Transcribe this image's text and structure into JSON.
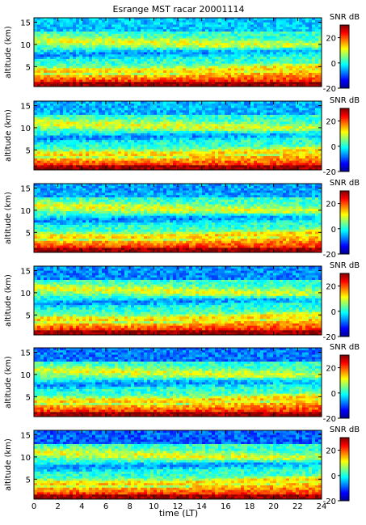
{
  "title": "Esrange MST racar 20001114",
  "colormap": [
    "#00008f",
    "#0000ff",
    "#0080ff",
    "#00ffff",
    "#80ff80",
    "#ffff00",
    "#ff8000",
    "#ff0000",
    "#800000"
  ],
  "chart_data": {
    "type": "heatmap",
    "title": "Esrange MST racar 20001114",
    "xlabel": "time (LT)",
    "ylabel": "altitude (km)",
    "xlim": [
      0,
      24
    ],
    "ylim": [
      0.5,
      16
    ],
    "xticks": [
      "0",
      "2",
      "4",
      "6",
      "8",
      "10",
      "12",
      "14",
      "16",
      "18",
      "20",
      "22",
      "24"
    ],
    "yticks": [
      "5",
      "10",
      "15"
    ],
    "colorbar": {
      "label": "SNR dB",
      "range": [
        -20,
        30
      ],
      "ticks": [
        "20",
        "0",
        "-20"
      ]
    },
    "panels": [
      {
        "ylabel": "altitude (km)"
      },
      {
        "ylabel": "altitude (km)"
      },
      {
        "ylabel": "altitude (km)"
      },
      {
        "ylabel": "altitude (km)"
      },
      {
        "ylabel": "altitude (km)"
      },
      {
        "ylabel": "altitude (km)"
      }
    ]
  }
}
